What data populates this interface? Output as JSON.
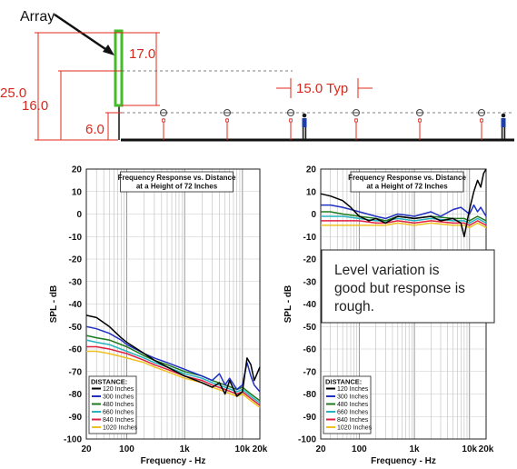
{
  "diagram": {
    "array_label": "Array",
    "dim_25": "25.0",
    "dim_17": "17.0",
    "dim_16": "16.0",
    "dim_6": "6.0",
    "dim_typ": "15.0 Typ",
    "colors": {
      "dimension": "#e0281e",
      "array": "#44bb2a"
    }
  },
  "annotation": {
    "lines": [
      "Level variation is",
      "good but response is",
      "rough."
    ]
  },
  "chart_data": [
    {
      "type": "line",
      "title": "Frequency Response vs. Distance",
      "subtitle": "at a Height of 72 Inches",
      "xlabel": "Frequency - Hz",
      "ylabel": "SPL - dB",
      "xscale": "log",
      "xlim": [
        20,
        20000
      ],
      "ylim": [
        -100,
        20
      ],
      "x_ticks": [
        "20",
        "100",
        "1k",
        "10k",
        "20k"
      ],
      "x_tick_values": [
        20,
        100,
        1000,
        10000,
        20000
      ],
      "y_ticks": [
        "20",
        "10",
        "0",
        "-10",
        "-20",
        "-30",
        "-40",
        "-50",
        "-60",
        "-70",
        "-80",
        "-90",
        "-100"
      ],
      "y_tick_values": [
        20,
        10,
        0,
        -10,
        -20,
        -30,
        -40,
        -50,
        -60,
        -70,
        -80,
        -90,
        -100
      ],
      "grid": true,
      "legend": {
        "title": "DISTANCE:",
        "position": "bottom-left"
      },
      "series": [
        {
          "name": "120 Inches",
          "color": "#000000",
          "x": [
            20,
            30,
            50,
            80,
            100,
            200,
            300,
            500,
            1000,
            2000,
            3000,
            4000,
            5000,
            6000,
            8000,
            10000,
            12000,
            14000,
            16000,
            20000
          ],
          "y": [
            -45,
            -46,
            -50,
            -55,
            -57,
            -62,
            -65,
            -68,
            -72,
            -75,
            -77,
            -75,
            -80,
            -74,
            -81,
            -79,
            -64,
            -67,
            -74,
            -68
          ]
        },
        {
          "name": "300 Inches",
          "color": "#2030c0",
          "x": [
            20,
            30,
            50,
            80,
            100,
            200,
            300,
            500,
            1000,
            2000,
            3000,
            4000,
            5000,
            6000,
            8000,
            10000,
            12000,
            14000,
            16000,
            20000
          ],
          "y": [
            -50,
            -51,
            -53,
            -56,
            -58,
            -62,
            -64,
            -66,
            -69,
            -72,
            -74,
            -71,
            -76,
            -73,
            -78,
            -76,
            -66,
            -72,
            -76,
            -79
          ]
        },
        {
          "name": "480 Inches",
          "color": "#1e7a1e",
          "x": [
            20,
            30,
            50,
            100,
            200,
            300,
            500,
            1000,
            2000,
            3000,
            5000,
            8000,
            10000,
            14000,
            20000
          ],
          "y": [
            -54,
            -55,
            -56,
            -59,
            -63,
            -65,
            -67,
            -70,
            -72,
            -74,
            -76,
            -78,
            -77,
            -80,
            -83
          ]
        },
        {
          "name": "660 Inches",
          "color": "#26b3c0",
          "x": [
            20,
            30,
            50,
            100,
            200,
            300,
            500,
            1000,
            2000,
            3000,
            5000,
            8000,
            10000,
            14000,
            20000
          ],
          "y": [
            -56,
            -57,
            -58,
            -61,
            -64,
            -66,
            -68,
            -71,
            -73,
            -75,
            -77,
            -79,
            -78,
            -81,
            -84
          ]
        },
        {
          "name": "840 Inches",
          "color": "#e02040",
          "x": [
            20,
            30,
            50,
            100,
            200,
            300,
            500,
            1000,
            2000,
            3000,
            5000,
            8000,
            10000,
            14000,
            20000
          ],
          "y": [
            -59,
            -59,
            -60,
            -62,
            -65,
            -67,
            -69,
            -72,
            -74,
            -76,
            -78,
            -80,
            -79,
            -82,
            -85
          ]
        },
        {
          "name": "1020 Inches",
          "color": "#f0c020",
          "x": [
            20,
            30,
            50,
            100,
            200,
            300,
            500,
            1000,
            2000,
            3000,
            5000,
            8000,
            10000,
            14000,
            20000
          ],
          "y": [
            -61,
            -61,
            -62,
            -64,
            -66,
            -68,
            -70,
            -73,
            -75,
            -77,
            -79,
            -81,
            -80,
            -83,
            -86
          ]
        }
      ]
    },
    {
      "type": "line",
      "title": "Frequency Response vs. Distance",
      "subtitle": "at a Height of 72 Inches",
      "xlabel": "Frequency - Hz",
      "ylabel": "SPL - dB",
      "xscale": "log",
      "xlim": [
        20,
        20000
      ],
      "ylim": [
        -100,
        20
      ],
      "x_ticks": [
        "20",
        "100",
        "1k",
        "10k",
        "20k"
      ],
      "x_tick_values": [
        20,
        100,
        1000,
        10000,
        20000
      ],
      "y_ticks": [
        "20",
        "10",
        "0",
        "-10",
        "-20",
        "-30",
        "-40",
        "-50",
        "-60",
        "-70",
        "-80",
        "-90",
        "-100"
      ],
      "y_tick_values": [
        20,
        10,
        0,
        -10,
        -20,
        -30,
        -40,
        -50,
        -60,
        -70,
        -80,
        -90,
        -100
      ],
      "grid": true,
      "legend": {
        "title": "DISTANCE:",
        "position": "bottom-left"
      },
      "series": [
        {
          "name": "120 Inches",
          "color": "#000000",
          "x": [
            20,
            30,
            50,
            70,
            100,
            150,
            200,
            300,
            500,
            1000,
            2000,
            3000,
            5000,
            7000,
            8000,
            10000,
            12000,
            14000,
            16000,
            18000,
            20000
          ],
          "y": [
            9,
            8,
            6,
            3,
            -1,
            -3,
            -2,
            -4,
            -1,
            -2,
            -1,
            -3,
            -2,
            -4,
            -10,
            2,
            10,
            15,
            12,
            18,
            20
          ]
        },
        {
          "name": "300 Inches",
          "color": "#2030c0",
          "x": [
            20,
            30,
            50,
            100,
            200,
            300,
            500,
            1000,
            2000,
            3000,
            5000,
            7000,
            10000,
            12000,
            14000,
            16000,
            20000
          ],
          "y": [
            4,
            4,
            3,
            1,
            -1,
            -2,
            0,
            -1,
            1,
            -1,
            2,
            3,
            0,
            4,
            1,
            3,
            -1
          ]
        },
        {
          "name": "480 Inches",
          "color": "#1e7a1e",
          "x": [
            20,
            30,
            50,
            100,
            200,
            300,
            500,
            1000,
            2000,
            5000,
            8000,
            10000,
            14000,
            20000
          ],
          "y": [
            1,
            1,
            0,
            -1,
            -2,
            -3,
            -1,
            -2,
            -1,
            -2,
            -2,
            -3,
            -1,
            -3
          ]
        },
        {
          "name": "660 Inches",
          "color": "#26b3c0",
          "x": [
            20,
            30,
            50,
            100,
            200,
            300,
            500,
            1000,
            2000,
            5000,
            8000,
            10000,
            14000,
            20000
          ],
          "y": [
            -1,
            -1,
            -1,
            -2,
            -3,
            -3,
            -2,
            -3,
            -2,
            -3,
            -3,
            -4,
            -2,
            -4
          ]
        },
        {
          "name": "840 Inches",
          "color": "#e02040",
          "x": [
            20,
            30,
            50,
            100,
            200,
            300,
            500,
            1000,
            2000,
            5000,
            8000,
            10000,
            14000,
            20000
          ],
          "y": [
            -3,
            -3,
            -3,
            -3,
            -4,
            -4,
            -3,
            -4,
            -3,
            -4,
            -4,
            -5,
            -3,
            -5
          ]
        },
        {
          "name": "1020 Inches",
          "color": "#f0c020",
          "x": [
            20,
            30,
            50,
            100,
            200,
            300,
            500,
            1000,
            2000,
            5000,
            8000,
            10000,
            14000,
            20000
          ],
          "y": [
            -5,
            -5,
            -5,
            -5,
            -5,
            -5,
            -4,
            -5,
            -4,
            -5,
            -5,
            -6,
            -4,
            -6
          ]
        }
      ]
    }
  ]
}
